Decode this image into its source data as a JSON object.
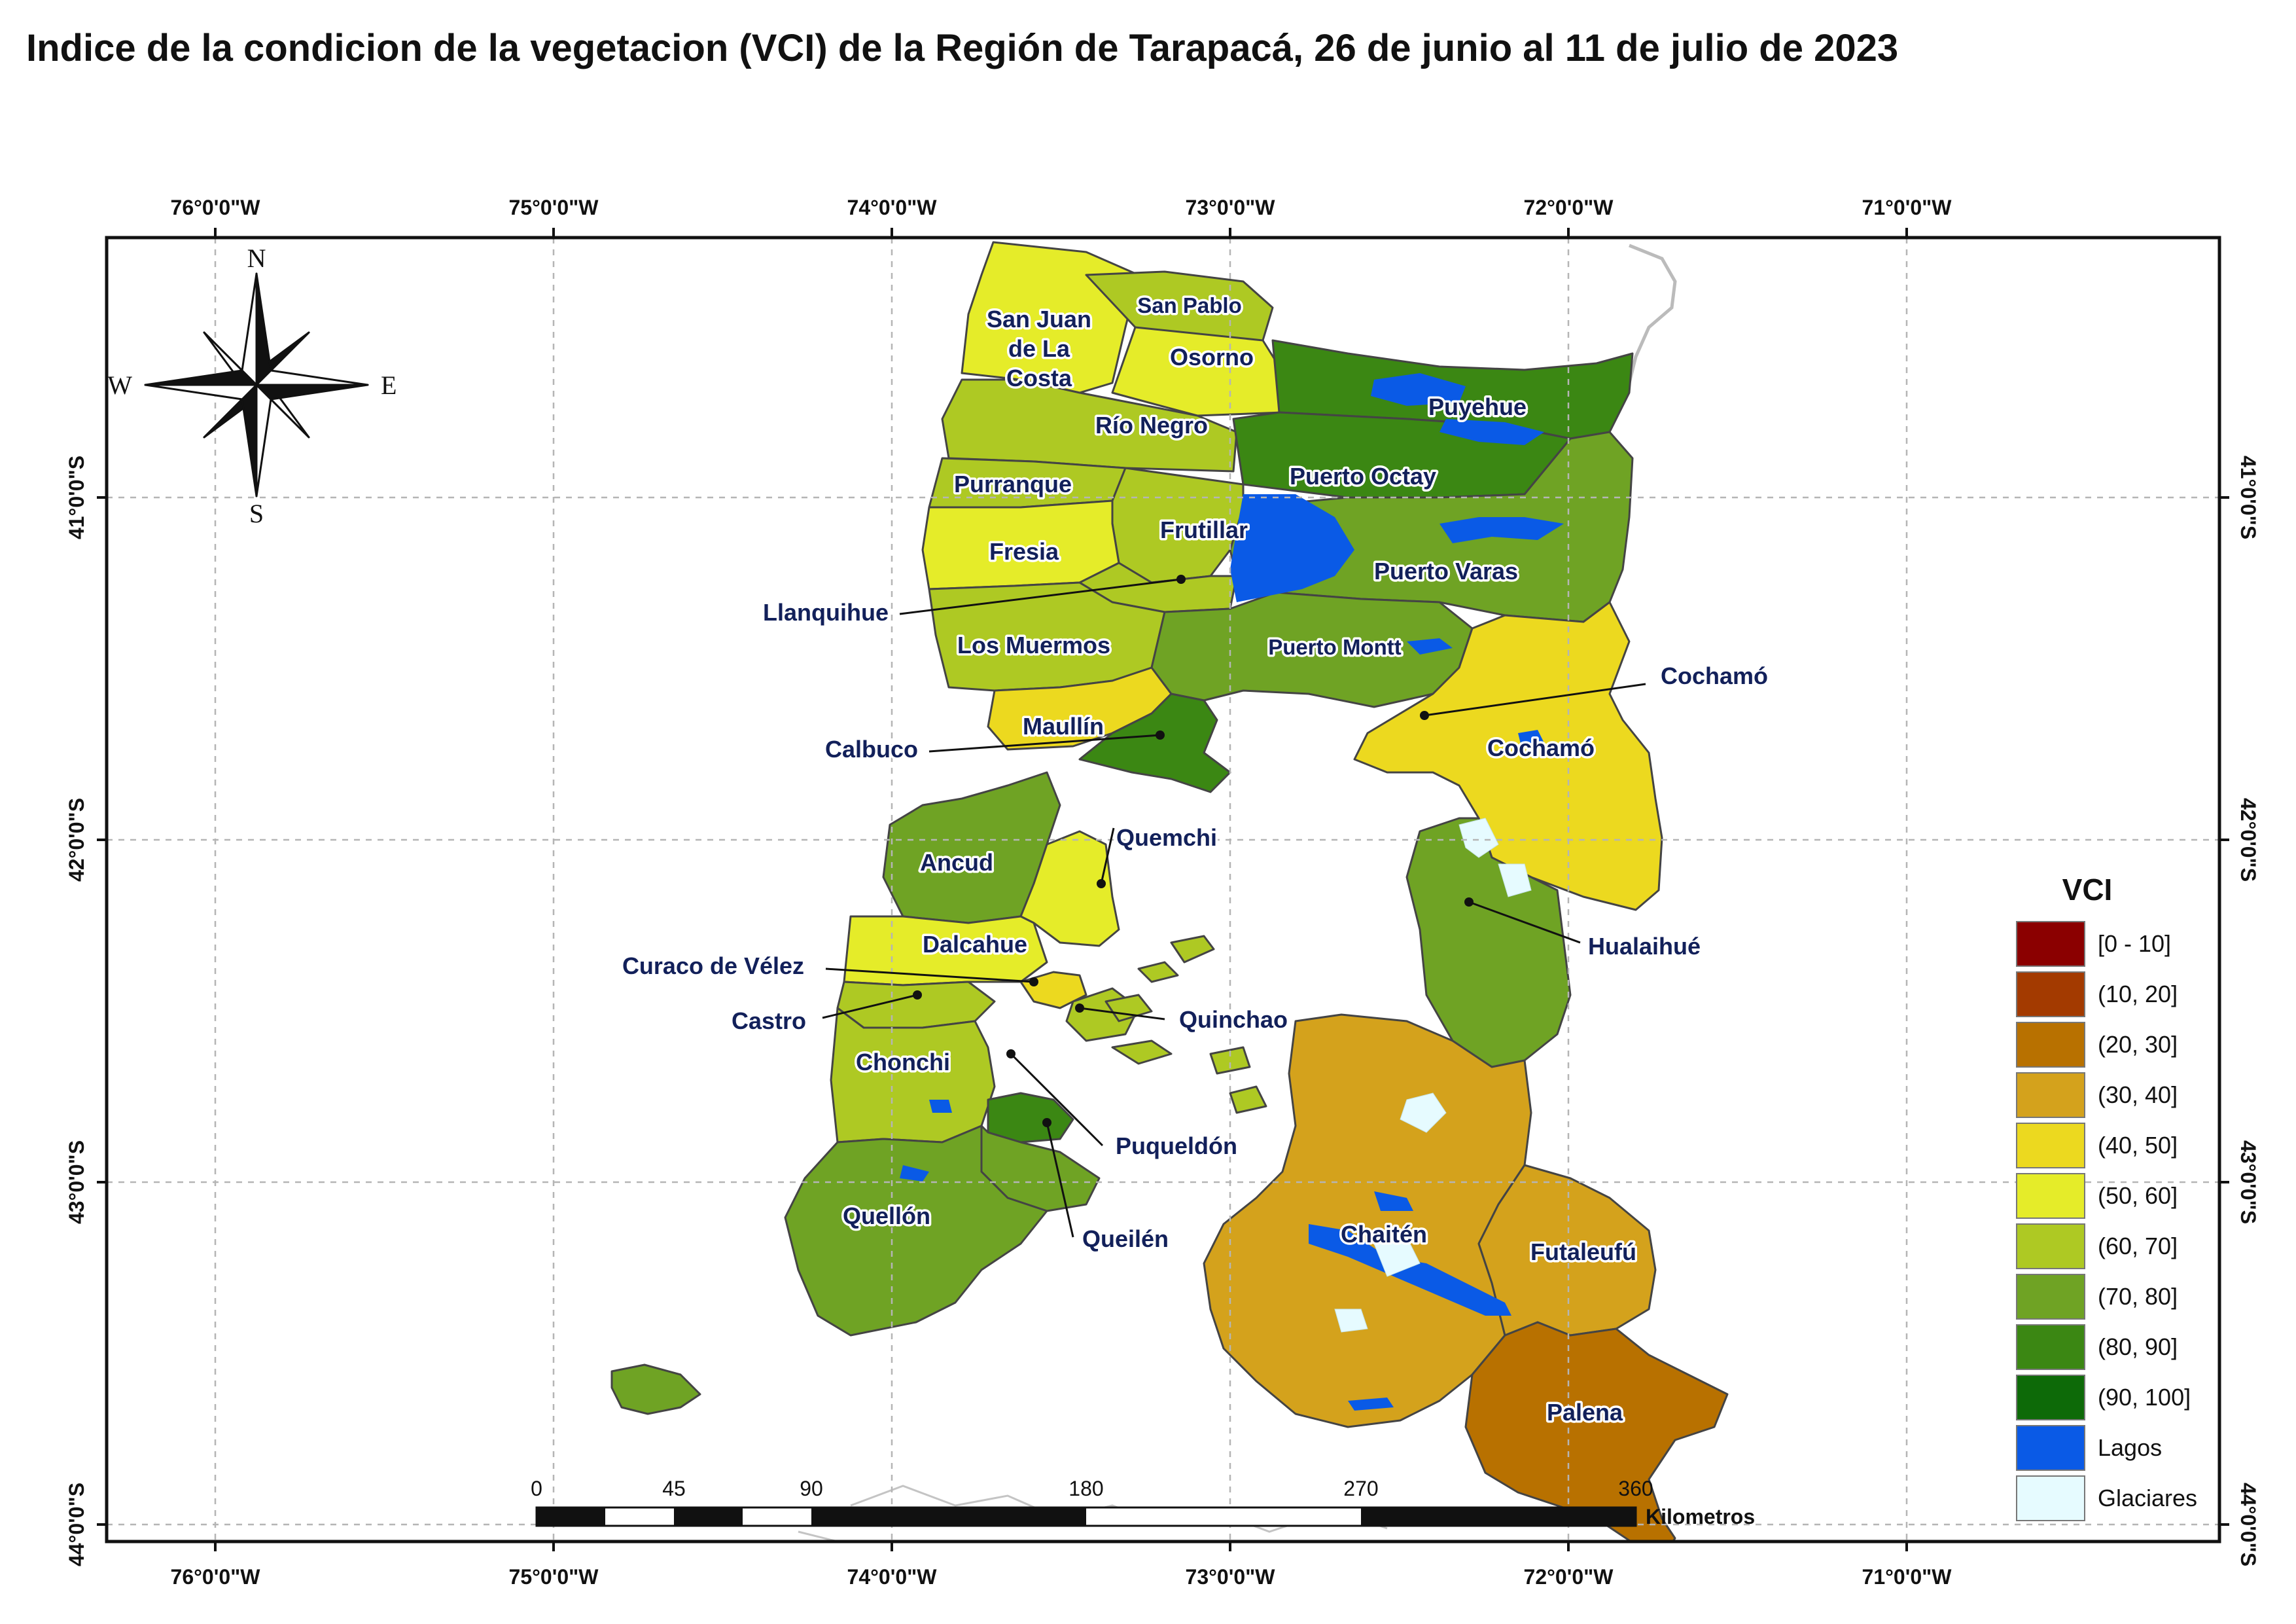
{
  "title": "Indice de la condicion de la vegetacion (VCI) de la Región de Tarapacá, 26 de junio al 11 de julio de 2023",
  "graticule": {
    "longitudes": [
      "76°0'0\"W",
      "75°0'0\"W",
      "74°0'0\"W",
      "73°0'0\"W",
      "72°0'0\"W",
      "71°0'0\"W"
    ],
    "latitudes": [
      "41°0'0\"S",
      "42°0'0\"S",
      "43°0'0\"S",
      "44°0'0\"S"
    ]
  },
  "compass": {
    "n": "N",
    "s": "S",
    "e": "E",
    "w": "W"
  },
  "colors": {
    "c0_10": "#8b0000",
    "c10_20": "#a33a00",
    "c20_30": "#b87100",
    "c30_40": "#d4a21c",
    "c40_50": "#ecd91f",
    "c50_60": "#e5ec29",
    "c60_70": "#aec923",
    "c70_80": "#6fa324",
    "c80_90": "#3b8713",
    "c90_100": "#0d6a08",
    "lagos": "#0a5ae6",
    "glaciares": "#e6fbff",
    "sea": "#ffffff",
    "neighbor": "#bbbbbb"
  },
  "comunas": [
    {
      "name": "San Juan de La Costa",
      "lines": [
        "San Juan",
        "de La",
        "Costa"
      ],
      "class": "c50_60"
    },
    {
      "name": "San Pablo",
      "class": "c60_70"
    },
    {
      "name": "Osorno",
      "class": "c50_60"
    },
    {
      "name": "Puyehue",
      "class": "c80_90"
    },
    {
      "name": "Río Negro",
      "class": "c60_70"
    },
    {
      "name": "Purranque",
      "class": "c60_70"
    },
    {
      "name": "Puerto Octay",
      "class": "c80_90"
    },
    {
      "name": "Frutillar",
      "class": "c60_70"
    },
    {
      "name": "Fresia",
      "class": "c50_60"
    },
    {
      "name": "Puerto Varas",
      "class": "c70_80"
    },
    {
      "name": "Llanquihue",
      "class": "c60_70"
    },
    {
      "name": "Los Muermos",
      "class": "c60_70"
    },
    {
      "name": "Puerto Montt",
      "class": "c70_80"
    },
    {
      "name": "Cochamó",
      "class": "c40_50"
    },
    {
      "name": "Maullín",
      "class": "c40_50"
    },
    {
      "name": "Calbuco",
      "class": "c80_90"
    },
    {
      "name": "Quemchi",
      "class": "c50_60"
    },
    {
      "name": "Ancud",
      "class": "c70_80"
    },
    {
      "name": "Hualaihué",
      "class": "c70_80"
    },
    {
      "name": "Curaco de Vélez",
      "class": "c40_50"
    },
    {
      "name": "Dalcahue",
      "class": "c50_60"
    },
    {
      "name": "Castro",
      "class": "c60_70"
    },
    {
      "name": "Quinchao",
      "class": "c60_70"
    },
    {
      "name": "Chonchi",
      "class": "c60_70"
    },
    {
      "name": "Puqueldón",
      "class": "c80_90"
    },
    {
      "name": "Queilén",
      "class": "c70_80"
    },
    {
      "name": "Quellón",
      "class": "c70_80"
    },
    {
      "name": "Chaitén",
      "class": "c30_40"
    },
    {
      "name": "Futaleufú",
      "class": "c30_40"
    },
    {
      "name": "Palena",
      "class": "c20_30"
    }
  ],
  "scalebar": {
    "ticks": [
      "0",
      "45",
      "90",
      "180",
      "270",
      "360"
    ],
    "unit": "Kilometros"
  },
  "legend": {
    "title": "VCI",
    "items": [
      {
        "label": "[0 - 10]",
        "key": "c0_10"
      },
      {
        "label": "(10, 20]",
        "key": "c10_20"
      },
      {
        "label": "(20, 30]",
        "key": "c20_30"
      },
      {
        "label": "(30, 40]",
        "key": "c30_40"
      },
      {
        "label": "(40, 50]",
        "key": "c40_50"
      },
      {
        "label": "(50, 60]",
        "key": "c50_60"
      },
      {
        "label": "(60, 70]",
        "key": "c60_70"
      },
      {
        "label": "(70, 80]",
        "key": "c70_80"
      },
      {
        "label": "(80, 90]",
        "key": "c80_90"
      },
      {
        "label": "(90, 100]",
        "key": "c90_100"
      },
      {
        "label": "Lagos",
        "key": "lagos"
      },
      {
        "label": "Glaciares",
        "key": "glaciares"
      }
    ]
  }
}
